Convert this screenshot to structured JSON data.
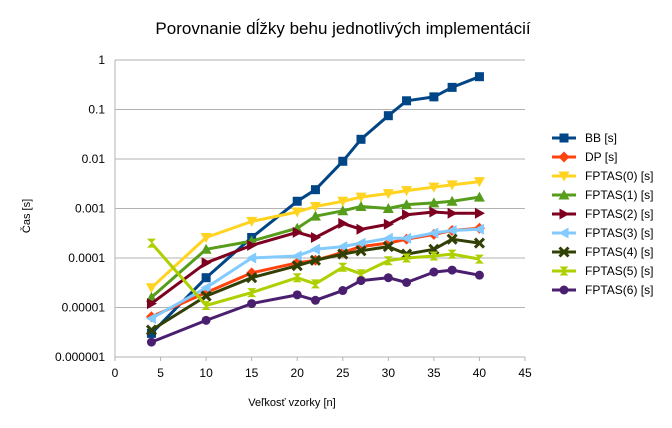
{
  "chart_data": {
    "type": "line",
    "title": "Porovnanie dĺžky behu jednotlivých implementácií",
    "xlabel": "Veľkosť vzorky [n]",
    "ylabel": "Čas [s]",
    "y_scale": "log",
    "xlim": [
      0,
      45
    ],
    "ylim": [
      1e-06,
      1
    ],
    "x_ticks": [
      "0",
      "5",
      "10",
      "15",
      "20",
      "25",
      "30",
      "35",
      "40",
      "45"
    ],
    "y_ticks": [
      "1",
      "0.1",
      "0.01",
      "0.001",
      "0.0001",
      "0.00001",
      "0.000001"
    ],
    "grid": "horizontal",
    "legend_position": "right",
    "series": [
      {
        "name": "BB [s]",
        "color": "#004586",
        "marker": "square",
        "x": [
          4,
          10,
          15,
          20,
          22,
          25,
          27,
          30,
          32,
          35,
          37,
          40
        ],
        "values": [
          3e-06,
          4e-05,
          0.00026,
          0.0014,
          0.0024,
          0.009,
          0.025,
          0.075,
          0.15,
          0.18,
          0.28,
          0.46
        ]
      },
      {
        "name": "DP [s]",
        "color": "#ff420e",
        "marker": "diamond",
        "x": [
          4,
          10,
          15,
          20,
          22,
          25,
          27,
          30,
          32,
          35,
          37,
          40
        ],
        "values": [
          6.5e-06,
          2e-05,
          5e-05,
          8e-05,
          9e-05,
          0.00013,
          0.00017,
          0.0002,
          0.00024,
          0.0003,
          0.00036,
          0.0004
        ]
      },
      {
        "name": "FPTAS(0) [s]",
        "color": "#ffd320",
        "marker": "triangle-down",
        "x": [
          4,
          10,
          15,
          20,
          22,
          25,
          27,
          30,
          32,
          35,
          37,
          40
        ],
        "values": [
          2.5e-05,
          0.00026,
          0.00055,
          0.00085,
          0.0011,
          0.0014,
          0.0017,
          0.002,
          0.0023,
          0.0027,
          0.003,
          0.0035
        ]
      },
      {
        "name": "FPTAS(1) [s]",
        "color": "#579d1c",
        "marker": "triangle-up",
        "x": [
          4,
          10,
          15,
          20,
          22,
          25,
          27,
          30,
          32,
          35,
          37,
          40
        ],
        "values": [
          1.6e-05,
          0.00015,
          0.00022,
          0.0004,
          0.0007,
          0.0009,
          0.0011,
          0.001,
          0.0012,
          0.0013,
          0.0014,
          0.0017
        ]
      },
      {
        "name": "FPTAS(2) [s]",
        "color": "#7e0021",
        "marker": "triangle-right",
        "x": [
          4,
          10,
          15,
          20,
          22,
          25,
          27,
          30,
          32,
          35,
          37,
          40
        ],
        "values": [
          1.2e-05,
          8e-05,
          0.00018,
          0.00033,
          0.00026,
          0.0005,
          0.00038,
          0.00048,
          0.00075,
          0.00085,
          0.0008,
          0.0008
        ]
      },
      {
        "name": "FPTAS(3) [s]",
        "color": "#83caff",
        "marker": "triangle-left",
        "x": [
          4,
          10,
          15,
          20,
          22,
          25,
          27,
          30,
          32,
          35,
          37,
          40
        ],
        "values": [
          6e-06,
          2.5e-05,
          0.0001,
          0.00011,
          0.00015,
          0.00017,
          0.0002,
          0.00025,
          0.00025,
          0.00032,
          0.00036,
          0.00038
        ]
      },
      {
        "name": "FPTAS(4) [s]",
        "color": "#314004",
        "marker": "x",
        "x": [
          4,
          10,
          15,
          20,
          22,
          25,
          27,
          30,
          32,
          35,
          37,
          40
        ],
        "values": [
          3.5e-06,
          1.7e-05,
          4e-05,
          7e-05,
          9e-05,
          0.00012,
          0.00014,
          0.00017,
          0.00012,
          0.00015,
          0.00024,
          0.0002
        ]
      },
      {
        "name": "FPTAS(5) [s]",
        "color": "#aecf00",
        "marker": "hourglass",
        "x": [
          4,
          10,
          15,
          20,
          22,
          25,
          27,
          30,
          32,
          35,
          37,
          40
        ],
        "values": [
          0.0002,
          1.1e-05,
          2e-05,
          4e-05,
          3e-05,
          6.5e-05,
          4.8e-05,
          8.8e-05,
          0.0001,
          0.00011,
          0.00012,
          9.5e-05
        ]
      },
      {
        "name": "FPTAS(6) [s]",
        "color": "#4b1f6f",
        "marker": "circle",
        "x": [
          4,
          10,
          15,
          20,
          22,
          25,
          27,
          30,
          32,
          35,
          37,
          40
        ],
        "values": [
          2e-06,
          5.5e-06,
          1.2e-05,
          1.8e-05,
          1.4e-05,
          2.2e-05,
          3.5e-05,
          4e-05,
          3.2e-05,
          5.2e-05,
          5.7e-05,
          4.5e-05
        ]
      }
    ]
  }
}
